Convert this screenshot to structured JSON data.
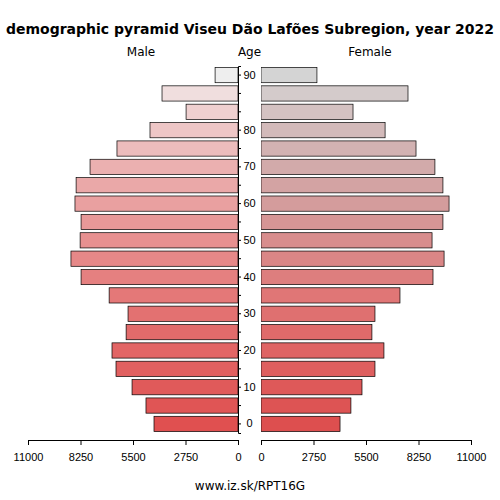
{
  "chart_data": {
    "type": "bar",
    "orientation": "horizontal",
    "title": "demographic pyramid Viseu Dão Lafões Subregion, year 2022",
    "y_label": "Age",
    "source": "www.iz.sk/RPT16G",
    "categories": [
      "0",
      null,
      "10",
      null,
      "20",
      null,
      "30",
      null,
      "40",
      null,
      "50",
      null,
      "60",
      null,
      "70",
      null,
      "80",
      null,
      null,
      "90"
    ],
    "xlim": [
      0,
      11000
    ],
    "xticks": [
      0,
      2750,
      5500,
      8250,
      11000
    ],
    "series": [
      {
        "name": "Male",
        "values": [
          4400,
          4820,
          5550,
          6390,
          6600,
          5860,
          5760,
          6750,
          8220,
          8750,
          8270,
          8220,
          8540,
          8480,
          7750,
          6340,
          4610,
          2720,
          3980,
          1200
        ],
        "colors": [
          "#e05050",
          "#e05555",
          "#e05a5a",
          "#e16060",
          "#e26565",
          "#e26b6b",
          "#e37171",
          "#e47878",
          "#e58080",
          "#e68888",
          "#e79090",
          "#e89898",
          "#e9a0a0",
          "#eaa8a8",
          "#ebb0b0",
          "#ecbcbc",
          "#eec6c6",
          "#efd0d0",
          "#f0dede",
          "#eeeeee"
        ]
      },
      {
        "name": "Female",
        "values": [
          4140,
          4710,
          5290,
          5970,
          6440,
          5810,
          5970,
          7280,
          9010,
          9590,
          8960,
          9530,
          9850,
          9530,
          9110,
          8120,
          6500,
          4820,
          7700,
          2930
        ],
        "colors": [
          "#dd4f4f",
          "#dd5454",
          "#de5959",
          "#de5f5f",
          "#df6464",
          "#df6a6a",
          "#df7070",
          "#e07676",
          "#dd7e7e",
          "#da8686",
          "#d88d8d",
          "#d69595",
          "#d49c9c",
          "#d3a3a3",
          "#d2aaaa",
          "#d2b2b2",
          "#d3baba",
          "#d4c2c2",
          "#d4cbcb",
          "#d4d4d4"
        ]
      }
    ]
  }
}
